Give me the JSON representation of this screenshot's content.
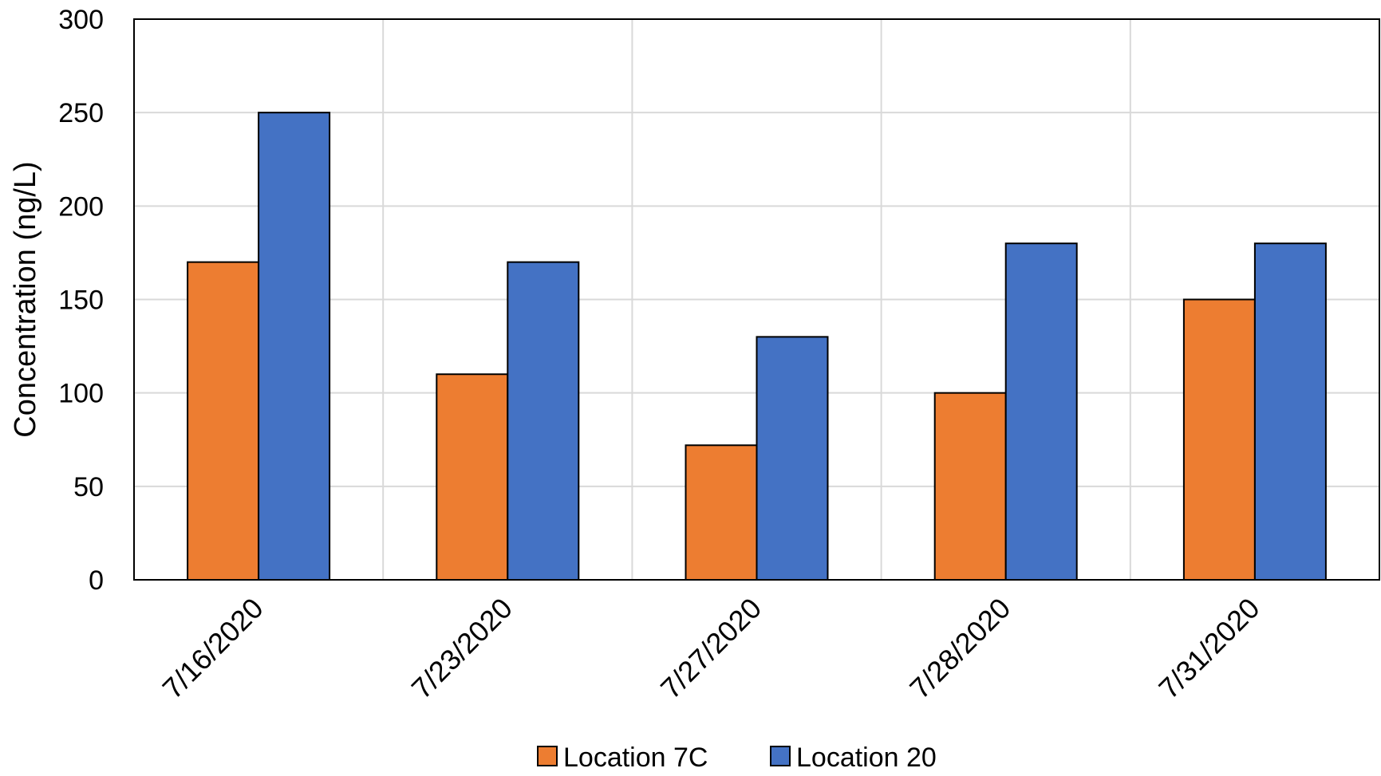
{
  "chart_data": {
    "type": "bar",
    "title": "",
    "xlabel": "",
    "ylabel": "Concentration (ng/L)",
    "categories": [
      "7/16/2020",
      "7/23/2020",
      "7/27/2020",
      "7/28/2020",
      "7/31/2020"
    ],
    "series": [
      {
        "name": "Location 7C",
        "color": "#ED7D31",
        "values": [
          170,
          110,
          72,
          100,
          150
        ]
      },
      {
        "name": "Location 20",
        "color": "#4472C4",
        "values": [
          250,
          170,
          130,
          180,
          180
        ]
      }
    ],
    "ylim": [
      0,
      300
    ],
    "yticks": [
      "0",
      "50",
      "100",
      "150",
      "200",
      "250",
      "300"
    ],
    "grid": true,
    "legend_position": "bottom"
  }
}
